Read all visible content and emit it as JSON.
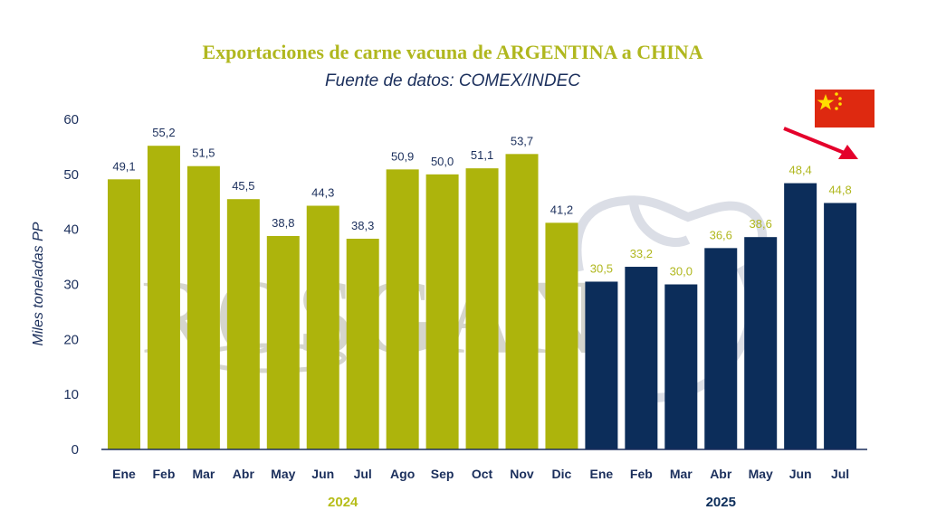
{
  "chart_data": {
    "type": "bar",
    "title": "Exportaciones de carne vacuna de ARGENTINA a CHINA",
    "subtitle": "Fuente de datos: COMEX/INDEC",
    "ylabel": "Miles toneladas PP",
    "ylim": [
      0,
      60
    ],
    "yticks": [
      "0",
      "10",
      "20",
      "30",
      "40",
      "50",
      "60"
    ],
    "grid": false,
    "categories": [
      "Ene",
      "Feb",
      "Mar",
      "Abr",
      "May",
      "Jun",
      "Jul",
      "Ago",
      "Sep",
      "Oct",
      "Nov",
      "Dic",
      "Ene",
      "Feb",
      "Mar",
      "Abr",
      "May",
      "Jun",
      "Jul"
    ],
    "values": [
      49.1,
      55.2,
      51.5,
      45.5,
      38.8,
      44.3,
      38.3,
      50.9,
      50.0,
      51.1,
      53.7,
      41.2,
      30.5,
      33.2,
      30.0,
      36.6,
      38.6,
      48.4,
      44.8
    ],
    "value_labels": [
      "49,1",
      "55,2",
      "51,5",
      "45,5",
      "38,8",
      "44,3",
      "38,3",
      "50,9",
      "50,0",
      "51,1",
      "53,7",
      "41,2",
      "30,5",
      "33,2",
      "30,0",
      "36,6",
      "38,6",
      "48,4",
      "44,8"
    ],
    "groups": [
      {
        "label": "2024",
        "count": 12,
        "bar_color": "#adb40c",
        "label_color": "#1b2f5c",
        "group_label_color": "#b6bd1a"
      },
      {
        "label": "2025",
        "count": 7,
        "bar_color": "#0c2d5a",
        "label_color": "#b0b71e",
        "group_label_color": "#0c2d5a"
      }
    ],
    "title_color": "#b0b71e",
    "subtitle_color": "#1b2f5c",
    "axis_color": "#1b2f5c",
    "watermark": "ROSGAN",
    "annotation": {
      "flag": "china-flag-icon",
      "arrow": "down-right-arrow-icon",
      "arrow_color": "#e4002b",
      "flag_color": "#de2910"
    }
  }
}
